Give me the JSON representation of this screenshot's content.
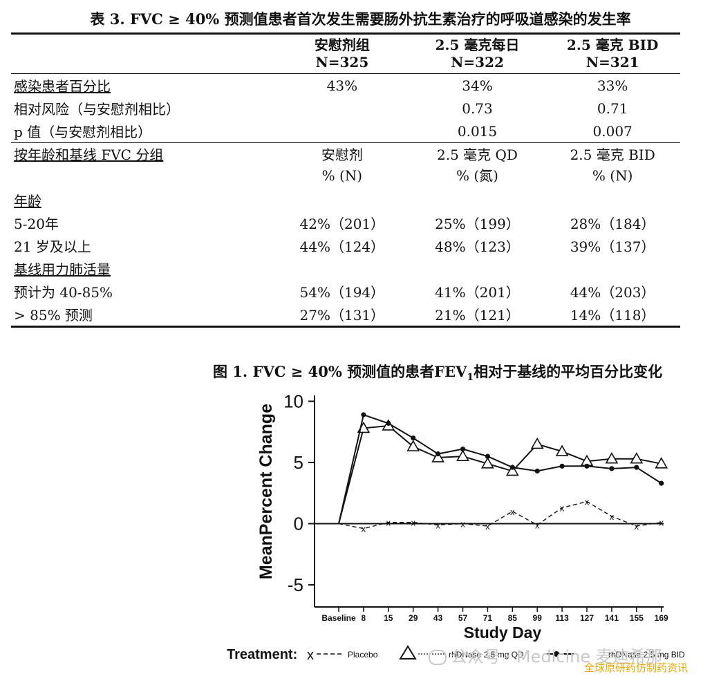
{
  "table": {
    "title": "表 3. FVC ≥ 40% 预测值患者首次发生需要肠外抗生素治疗的呼吸道感染的发生率",
    "header": [
      {
        "line1": "安慰剂组",
        "line2": "N=325"
      },
      {
        "line1": "2.5 毫克每日",
        "line2": "N=322"
      },
      {
        "line1": "2.5 毫克 BID",
        "line2": "N=321"
      }
    ],
    "rows": [
      {
        "label": "感染患者百分比",
        "values": [
          "43%",
          "34%",
          "33%"
        ]
      },
      {
        "label": "相对风险（与安慰剂相比）",
        "values": [
          "",
          "0.73",
          "0.71"
        ]
      },
      {
        "label": "p 值（与安慰剂相比）",
        "values": [
          "",
          "0.015",
          "0.007"
        ]
      }
    ],
    "subgroup": {
      "label": "按年龄和基线 FVC 分组",
      "headers": [
        {
          "line1": "安慰剂",
          "line2": "% (N)"
        },
        {
          "line1": "2.5 毫克 QD",
          "line2": "% (氮)"
        },
        {
          "line1": "2.5 毫克 BID",
          "line2": "% (N)"
        }
      ],
      "sections": [
        {
          "title": "年龄",
          "rows": [
            {
              "label": "5-20年",
              "values": [
                "42%（201）",
                "25%（199）",
                "28%（184）"
              ]
            },
            {
              "label": "21 岁及以上",
              "values": [
                "44%（124）",
                "48%（123）",
                "39%（137）"
              ]
            }
          ]
        },
        {
          "title": "基线用力肺活量",
          "rows": [
            {
              "label": "预计为 40-85%",
              "values": [
                "54%（194）",
                "41%（201）",
                "44%（203）"
              ]
            },
            {
              "label": "> 85% 预测",
              "values": [
                "27%（131）",
                "21%（121）",
                "14%（118）"
              ]
            }
          ]
        }
      ]
    }
  },
  "figure": {
    "title_main": "图 1. FVC ≥ 40% 预测值的患者FEV",
    "title_sub": "1",
    "title_rest": "相对于基线的平均百分比变化"
  },
  "chart_data": {
    "type": "line",
    "xlabel": "Study Day",
    "ylabel": "MeanPercent Change",
    "x": [
      "Baseline",
      "8",
      "15",
      "29",
      "43",
      "57",
      "71",
      "85",
      "99",
      "113",
      "127",
      "141",
      "155",
      "169"
    ],
    "ylim": [
      -7,
      10.5
    ],
    "yticks": [
      10,
      5,
      0,
      -5
    ],
    "grid": false,
    "legend_title": "Treatment:",
    "legend_position": "bottom",
    "series": [
      {
        "name": "Placebo",
        "marker": "x",
        "dash": "dashed",
        "values": [
          0,
          -0.4,
          0.1,
          0.1,
          -0.1,
          0.0,
          -0.2,
          1.0,
          -0.1,
          1.3,
          1.8,
          0.6,
          -0.2,
          0.1
        ]
      },
      {
        "name": "rhDNase 2.5 mg QD",
        "marker": "triangle",
        "dash": "solid",
        "values": [
          0,
          7.8,
          8.0,
          6.3,
          5.4,
          5.5,
          4.9,
          4.3,
          6.5,
          5.9,
          5.1,
          5.3,
          5.3,
          4.9
        ]
      },
      {
        "name": "rhDNase 2.5 mg BID",
        "marker": "dot",
        "dash": "solid",
        "values": [
          0,
          8.9,
          8.2,
          7.0,
          5.7,
          6.1,
          5.5,
          4.6,
          4.3,
          4.7,
          4.7,
          4.5,
          4.6,
          3.3
        ]
      }
    ]
  },
  "watermark": {
    "text": "公众号 · Medicine 麦迪希那"
  },
  "source": {
    "text": "全球原研药仿制药资讯"
  }
}
